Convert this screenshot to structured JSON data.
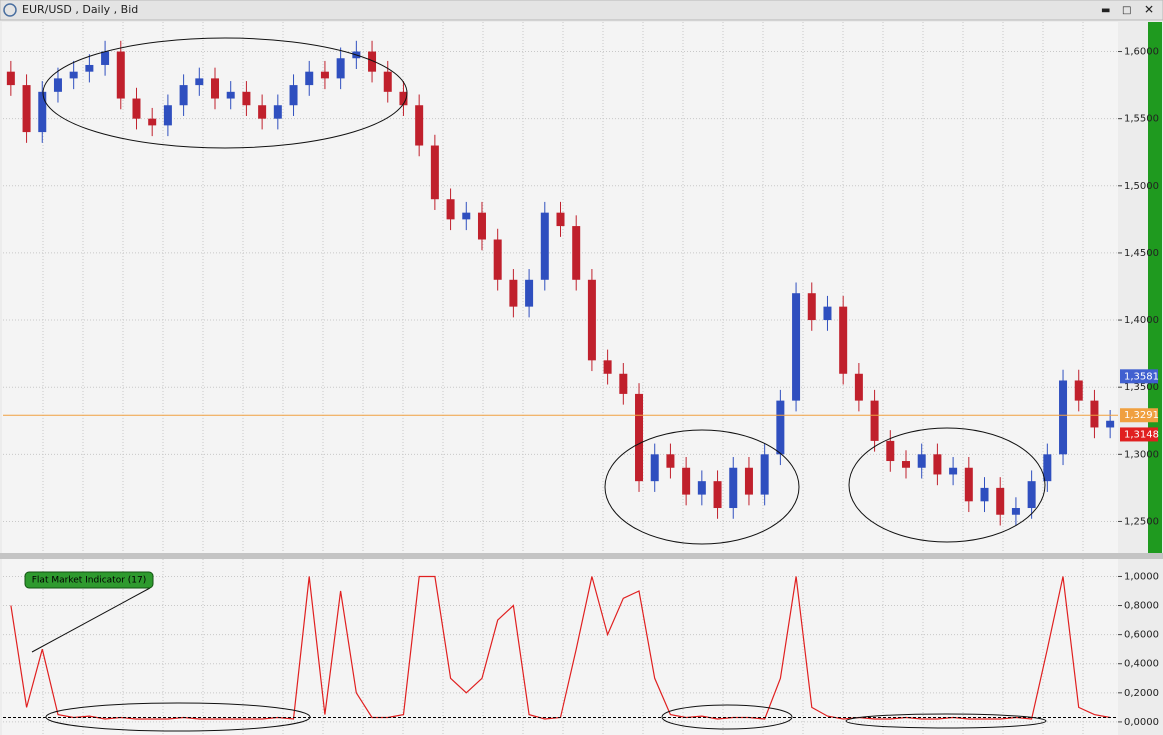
{
  "chart_data": [
    {
      "type": "candlestick",
      "title": "EUR/USD , Daily , Bid",
      "categories": [
        null,
        null,
        null,
        null,
        null,
        null,
        null,
        null,
        null,
        null,
        null,
        null,
        null,
        null,
        null,
        null,
        null,
        null,
        null,
        null,
        null,
        null,
        null,
        null,
        null,
        null,
        null,
        null,
        null,
        null,
        null,
        null,
        null,
        null,
        null,
        null,
        null,
        null,
        null,
        null,
        null,
        null,
        null,
        null,
        null,
        null,
        null,
        null,
        null,
        null,
        null,
        null,
        null,
        null,
        null,
        null,
        null,
        null,
        null,
        null,
        null,
        null,
        null,
        null,
        null,
        null,
        null,
        null,
        null,
        null,
        null
      ],
      "open": [
        1.585,
        1.575,
        1.54,
        1.57,
        1.58,
        1.585,
        1.59,
        1.6,
        1.565,
        1.55,
        1.545,
        1.56,
        1.575,
        1.58,
        1.565,
        1.57,
        1.56,
        1.55,
        1.56,
        1.575,
        1.585,
        1.58,
        1.595,
        1.6,
        1.585,
        1.57,
        1.56,
        1.53,
        1.49,
        1.475,
        1.48,
        1.46,
        1.43,
        1.41,
        1.43,
        1.48,
        1.47,
        1.43,
        1.37,
        1.36,
        1.345,
        1.28,
        1.3,
        1.29,
        1.27,
        1.28,
        1.26,
        1.29,
        1.27,
        1.3,
        1.34,
        1.42,
        1.4,
        1.41,
        1.36,
        1.34,
        1.31,
        1.295,
        1.29,
        1.3,
        1.285,
        1.29,
        1.265,
        1.275,
        1.255,
        1.26,
        1.28,
        1.3,
        1.355,
        1.34,
        1.32
      ],
      "high": [
        1.593,
        1.583,
        1.578,
        1.588,
        1.593,
        1.598,
        1.608,
        1.608,
        1.573,
        1.558,
        1.568,
        1.583,
        1.588,
        1.588,
        1.578,
        1.578,
        1.568,
        1.568,
        1.583,
        1.593,
        1.593,
        1.603,
        1.608,
        1.608,
        1.593,
        1.578,
        1.568,
        1.538,
        1.498,
        1.488,
        1.488,
        1.468,
        1.438,
        1.438,
        1.488,
        1.488,
        1.478,
        1.438,
        1.378,
        1.368,
        1.353,
        1.308,
        1.308,
        1.298,
        1.288,
        1.288,
        1.298,
        1.298,
        1.308,
        1.348,
        1.428,
        1.428,
        1.418,
        1.418,
        1.368,
        1.348,
        1.318,
        1.303,
        1.308,
        1.308,
        1.298,
        1.298,
        1.283,
        1.283,
        1.268,
        1.288,
        1.308,
        1.363,
        1.363,
        1.348,
        1.333
      ],
      "low": [
        1.567,
        1.532,
        1.532,
        1.562,
        1.572,
        1.577,
        1.582,
        1.557,
        1.542,
        1.537,
        1.537,
        1.552,
        1.567,
        1.557,
        1.557,
        1.552,
        1.542,
        1.542,
        1.552,
        1.567,
        1.572,
        1.572,
        1.587,
        1.577,
        1.562,
        1.552,
        1.522,
        1.482,
        1.467,
        1.467,
        1.452,
        1.422,
        1.402,
        1.402,
        1.422,
        1.462,
        1.422,
        1.362,
        1.352,
        1.337,
        1.272,
        1.272,
        1.282,
        1.262,
        1.262,
        1.252,
        1.252,
        1.262,
        1.262,
        1.292,
        1.332,
        1.392,
        1.392,
        1.352,
        1.332,
        1.302,
        1.287,
        1.282,
        1.282,
        1.277,
        1.277,
        1.257,
        1.257,
        1.247,
        1.247,
        1.252,
        1.272,
        1.292,
        1.332,
        1.312,
        1.312
      ],
      "close": [
        1.575,
        1.54,
        1.57,
        1.58,
        1.585,
        1.59,
        1.6,
        1.565,
        1.55,
        1.545,
        1.56,
        1.575,
        1.58,
        1.565,
        1.57,
        1.56,
        1.55,
        1.56,
        1.575,
        1.585,
        1.58,
        1.595,
        1.6,
        1.585,
        1.57,
        1.56,
        1.53,
        1.49,
        1.475,
        1.48,
        1.46,
        1.43,
        1.41,
        1.43,
        1.48,
        1.47,
        1.43,
        1.37,
        1.36,
        1.345,
        1.28,
        1.3,
        1.29,
        1.27,
        1.28,
        1.26,
        1.29,
        1.27,
        1.3,
        1.34,
        1.42,
        1.4,
        1.41,
        1.36,
        1.34,
        1.31,
        1.295,
        1.29,
        1.3,
        1.285,
        1.29,
        1.265,
        1.275,
        1.255,
        1.26,
        1.28,
        1.3,
        1.355,
        1.34,
        1.32,
        1.325
      ],
      "up_color": "#2f4fbf",
      "down_color": "#c0202c",
      "ylim": [
        1.2265,
        1.622
      ],
      "yticks": [
        {
          "value": 1.25,
          "label": "1,2500"
        },
        {
          "value": 1.3,
          "label": "1,3000"
        },
        {
          "value": 1.35,
          "label": "1,3500"
        },
        {
          "value": 1.4,
          "label": "1,4000"
        },
        {
          "value": 1.45,
          "label": "1,4500"
        },
        {
          "value": 1.5,
          "label": "1,5000"
        },
        {
          "value": 1.55,
          "label": "1,5500"
        },
        {
          "value": 1.6,
          "label": "1,6000"
        }
      ],
      "grid": true,
      "price_markers": [
        {
          "value": 1.3581,
          "label": "1,3581",
          "color": "#4060d0"
        },
        {
          "value": 1.3291,
          "label": "1,3291",
          "color": "#f0a040"
        },
        {
          "value": 1.3148,
          "label": "1,3148",
          "color": "#e02020"
        }
      ]
    },
    {
      "type": "line",
      "title": "Flat Market Indicator (17)",
      "color": "#e02020",
      "values": [
        0.8,
        0.1,
        0.5,
        0.05,
        0.03,
        0.04,
        0.02,
        0.03,
        0.02,
        0.02,
        0.02,
        0.03,
        0.02,
        0.02,
        0.02,
        0.02,
        0.02,
        0.03,
        0.02,
        1.0,
        0.05,
        0.9,
        0.2,
        0.03,
        0.03,
        0.05,
        1.0,
        1.0,
        0.3,
        0.2,
        0.3,
        0.7,
        0.8,
        0.05,
        0.02,
        0.03,
        0.5,
        1.0,
        0.6,
        0.85,
        0.9,
        0.3,
        0.05,
        0.03,
        0.04,
        0.02,
        0.03,
        0.03,
        0.02,
        0.3,
        1.0,
        0.1,
        0.04,
        0.02,
        0.03,
        0.02,
        0.02,
        0.03,
        0.02,
        0.02,
        0.03,
        0.02,
        0.02,
        0.02,
        0.03,
        0.02,
        0.5,
        1.0,
        0.1,
        0.05,
        0.03
      ],
      "ylim": [
        -0.09,
        1.12
      ],
      "yticks": [
        {
          "value": 0,
          "label": "0,0000"
        },
        {
          "value": 0.2,
          "label": "0,2000"
        },
        {
          "value": 0.4,
          "label": "0,4000"
        },
        {
          "value": 0.6,
          "label": "0,6000"
        },
        {
          "value": 0.8,
          "label": "0,8000"
        },
        {
          "value": 1,
          "label": "1,0000"
        }
      ],
      "grid": true,
      "threshold": 0.03
    }
  ]
}
